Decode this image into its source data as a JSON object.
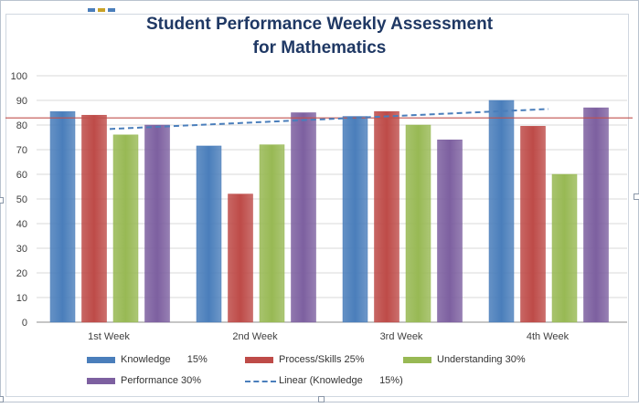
{
  "chart_data": {
    "type": "bar",
    "title_line1": "Student Performance Weekly Assessment",
    "title_line2": "for Mathematics",
    "categories": [
      "1st Week",
      "2nd Week",
      "3rd Week",
      "4th Week"
    ],
    "ylim": [
      0,
      100
    ],
    "yticks": [
      "0",
      "10",
      "20",
      "30",
      "40",
      "50",
      "60",
      "70",
      "80",
      "90",
      "100"
    ],
    "grid": true,
    "legend_placement": "bottom",
    "series": [
      {
        "name": "Knowledge      15%",
        "color": "#4a7ebb",
        "values": [
          85.5,
          71.5,
          83.5,
          90
        ]
      },
      {
        "name": "Process/Skills 25%",
        "color": "#be4b48",
        "values": [
          84,
          52,
          85.5,
          79.5
        ]
      },
      {
        "name": "Understanding 30%",
        "color": "#98b954",
        "values": [
          76,
          72,
          80,
          60
        ]
      },
      {
        "name": "Performance 30%",
        "color": "#7d60a0",
        "values": [
          80,
          85,
          74,
          87
        ]
      }
    ],
    "trendline": {
      "name": "Linear (Knowledge      15%)",
      "type": "linear",
      "of_series": "Knowledge      15%",
      "values": [
        78.4,
        81.1,
        83.8,
        86.5
      ],
      "color": "#4a7ebb"
    },
    "reference_line": {
      "value": 82.9,
      "color": "#c0504d"
    }
  }
}
